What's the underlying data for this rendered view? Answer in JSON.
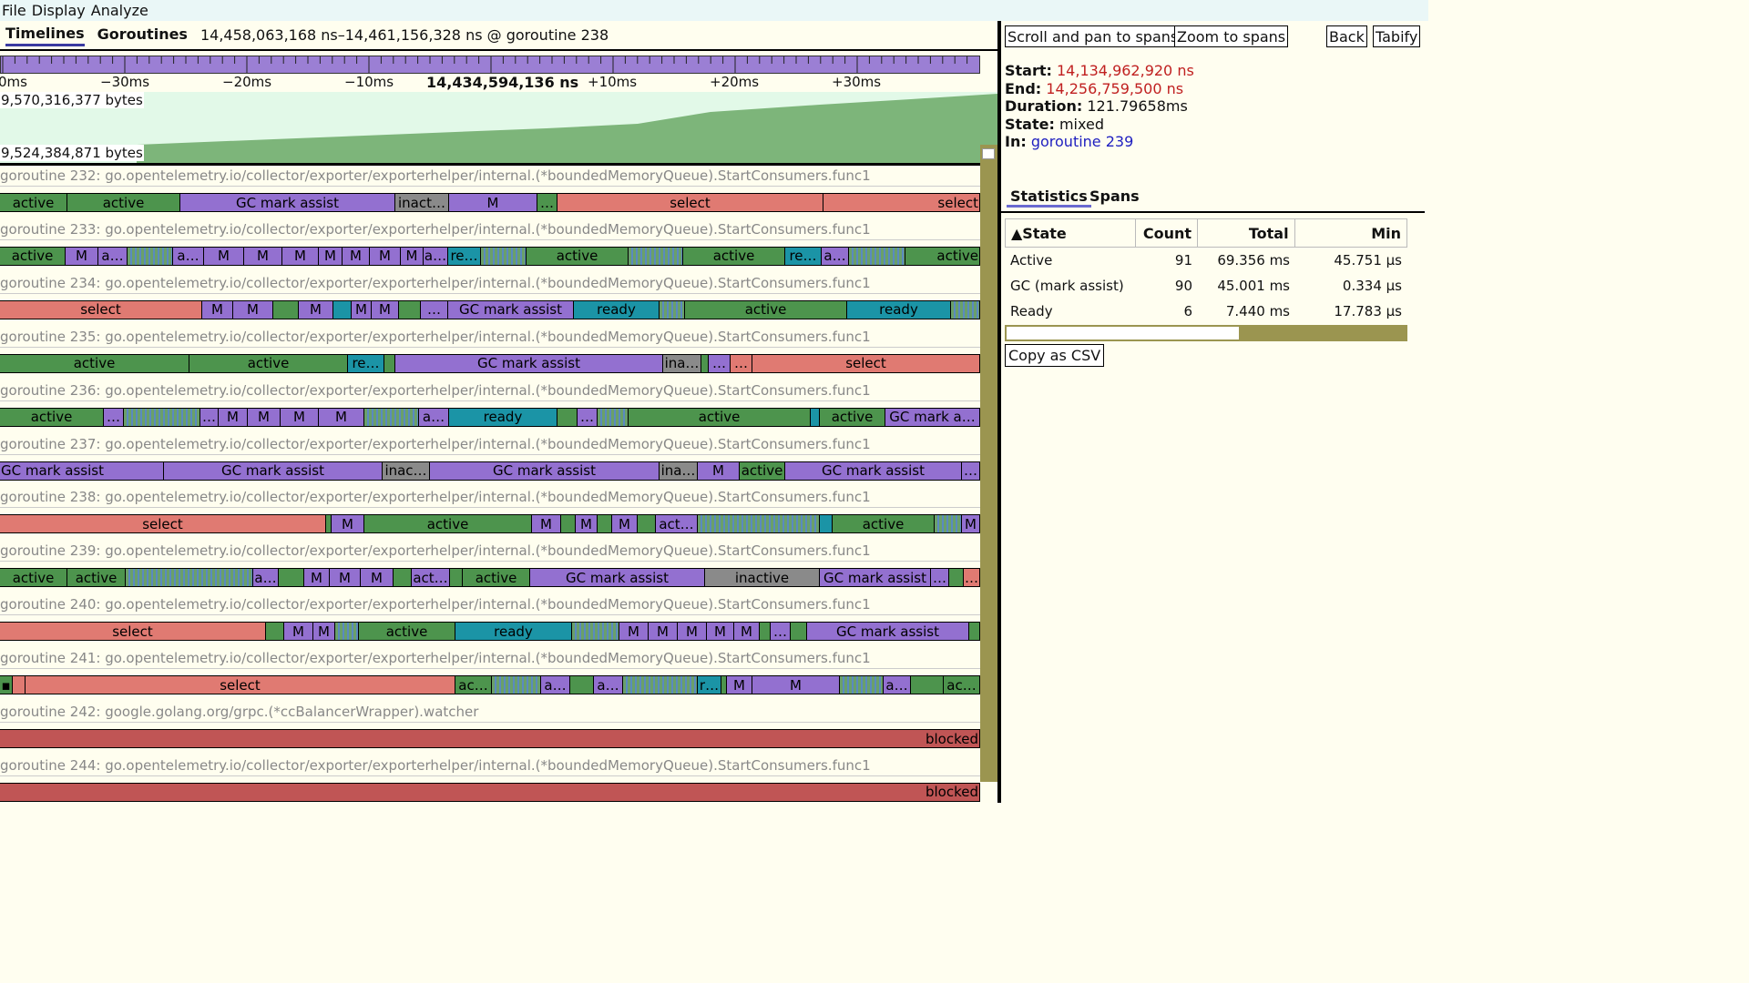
{
  "menu": [
    "File",
    "Display",
    "Analyze"
  ],
  "tabs": {
    "timelines": "Timelines",
    "goroutines": "Goroutines"
  },
  "range_label": "14,458,063,168 ns–14,461,156,328 ns @ goroutine 238",
  "time_labels": [
    "0ms",
    "−30ms",
    "−20ms",
    "−10ms",
    "14,434,594,136 ns",
    "+10ms",
    "+20ms",
    "+30ms"
  ],
  "memory": {
    "max_label": "9,570,316,377 bytes",
    "min_label": "9,524,384,871 bytes"
  },
  "goroutine_rows": [
    {
      "name": "goroutine 232: go.opentelemetry.io/collector/exporter/exporterhelper/internal.(*boundedMemoryQueue).StartConsumers.func1"
    },
    {
      "name": "goroutine 233: go.opentelemetry.io/collector/exporter/exporterhelper/internal.(*boundedMemoryQueue).StartConsumers.func1"
    },
    {
      "name": "goroutine 234: go.opentelemetry.io/collector/exporter/exporterhelper/internal.(*boundedMemoryQueue).StartConsumers.func1"
    },
    {
      "name": "goroutine 235: go.opentelemetry.io/collector/exporter/exporterhelper/internal.(*boundedMemoryQueue).StartConsumers.func1"
    },
    {
      "name": "goroutine 236: go.opentelemetry.io/collector/exporter/exporterhelper/internal.(*boundedMemoryQueue).StartConsumers.func1"
    },
    {
      "name": "goroutine 237: go.opentelemetry.io/collector/exporter/exporterhelper/internal.(*boundedMemoryQueue).StartConsumers.func1"
    },
    {
      "name": "goroutine 238: go.opentelemetry.io/collector/exporter/exporterhelper/internal.(*boundedMemoryQueue).StartConsumers.func1"
    },
    {
      "name": "goroutine 239: go.opentelemetry.io/collector/exporter/exporterhelper/internal.(*boundedMemoryQueue).StartConsumers.func1"
    },
    {
      "name": "goroutine 240: go.opentelemetry.io/collector/exporter/exporterhelper/internal.(*boundedMemoryQueue).StartConsumers.func1"
    },
    {
      "name": "goroutine 241: go.opentelemetry.io/collector/exporter/exporterhelper/internal.(*boundedMemoryQueue).StartConsumers.func1"
    },
    {
      "name": "goroutine 242: google.golang.org/grpc.(*ccBalancerWrapper).watcher"
    },
    {
      "name": "goroutine 244: go.opentelemetry.io/collector/exporter/exporterhelper/internal.(*boundedMemoryQueue).StartConsumers.func1"
    }
  ],
  "span_labels": {
    "active": "active",
    "select": "select",
    "gc": "GC mark assist",
    "inact": "inact…",
    "inactive": "inactive",
    "inac": "inac…",
    "ina": "ina…",
    "m": "M",
    "a": "a…",
    "re": "re…",
    "ready": "ready",
    "act": "act…",
    "ac": "ac…",
    "r": "r…",
    "dots": "…",
    "gca": "GC mark a…",
    "blocked": "blocked",
    "b1": "▪"
  },
  "buttons": {
    "scroll_pan": "Scroll and pan to spans",
    "zoom": "Zoom to spans",
    "back": "Back",
    "tabify": "Tabify"
  },
  "info": {
    "start_label": "Start:",
    "start_value": "14,134,962,920 ns",
    "end_label": "End:",
    "end_value": "14,256,759,500 ns",
    "duration_label": "Duration:",
    "duration_value": "121.79658ms",
    "state_label": "State:",
    "state_value": "mixed",
    "in_label": "In:",
    "in_value": "goroutine 239"
  },
  "stat_tabs": {
    "statistics": "Statistics",
    "spans": "Spans"
  },
  "stats_table": {
    "headers": [
      "▲State",
      "Count",
      "Total",
      "Min"
    ],
    "rows": [
      [
        "Active",
        "91",
        "69.356 ms",
        "45.751 µs"
      ],
      [
        "GC (mark assist)",
        "90",
        "45.001 ms",
        "0.334 µs"
      ],
      [
        "Ready",
        "6",
        "7.440 ms",
        "17.783 µs"
      ]
    ]
  },
  "copy_csv": "Copy as CSV",
  "colors": {
    "active": "#4d944d",
    "select": "#e07a72",
    "gc": "#9370d0",
    "ready": "#1b94a6",
    "inactive": "#8a8a8a",
    "blocked": "#c05555",
    "link": "#2020c0",
    "highlight": "#c02020"
  }
}
